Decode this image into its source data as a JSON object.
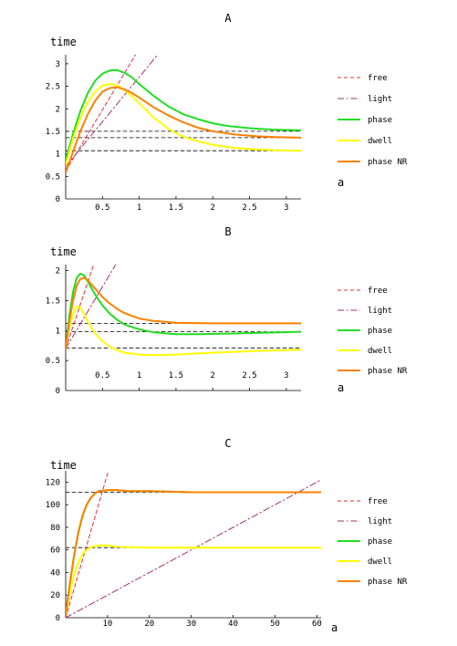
{
  "chart_data": [
    {
      "type": "line",
      "title": "A",
      "xlabel": "a",
      "ylabel": "time",
      "xlim": [
        0,
        3.2
      ],
      "ylim": [
        0,
        3.2
      ],
      "xticks": [
        0.5,
        1,
        1.5,
        2,
        2.5,
        3
      ],
      "xtick_labels": [
        "0.5",
        "1",
        "1.5",
        "2",
        "2.5",
        "3"
      ],
      "yticks": [
        0.5,
        1,
        1.5,
        2,
        2.5,
        3
      ],
      "ytick_labels": [
        "0.5",
        "1",
        "1.5",
        "2",
        "2.5",
        "3"
      ],
      "origin_label": "0",
      "legend_position": "right",
      "series": [
        {
          "name": "free",
          "style": "dashed",
          "color": "#e03030",
          "width": 1,
          "points": [
            [
              0,
              0.62
            ],
            [
              0.95,
              3.2
            ]
          ]
        },
        {
          "name": "light",
          "style": "dashdot",
          "color": "#a03070",
          "width": 1,
          "points": [
            [
              0,
              0.72
            ],
            [
              1.25,
              3.2
            ]
          ]
        },
        {
          "name": "phase",
          "style": "solid",
          "color": "#22dd22",
          "width": 2,
          "points": [
            [
              0,
              0.85
            ],
            [
              0.1,
              1.45
            ],
            [
              0.2,
              1.95
            ],
            [
              0.3,
              2.35
            ],
            [
              0.4,
              2.62
            ],
            [
              0.5,
              2.78
            ],
            [
              0.6,
              2.85
            ],
            [
              0.7,
              2.86
            ],
            [
              0.8,
              2.8
            ],
            [
              0.9,
              2.7
            ],
            [
              1.0,
              2.55
            ],
            [
              1.2,
              2.28
            ],
            [
              1.4,
              2.05
            ],
            [
              1.6,
              1.88
            ],
            [
              1.8,
              1.77
            ],
            [
              2.0,
              1.68
            ],
            [
              2.2,
              1.62
            ],
            [
              2.5,
              1.57
            ],
            [
              2.8,
              1.54
            ],
            [
              3.2,
              1.52
            ]
          ]
        },
        {
          "name": "dwell",
          "style": "solid",
          "color": "#ffff00",
          "width": 2,
          "points": [
            [
              0,
              0.75
            ],
            [
              0.1,
              1.35
            ],
            [
              0.2,
              1.8
            ],
            [
              0.3,
              2.15
            ],
            [
              0.4,
              2.38
            ],
            [
              0.5,
              2.52
            ],
            [
              0.6,
              2.55
            ],
            [
              0.7,
              2.52
            ],
            [
              0.8,
              2.42
            ],
            [
              0.9,
              2.28
            ],
            [
              1.0,
              2.12
            ],
            [
              1.2,
              1.8
            ],
            [
              1.4,
              1.55
            ],
            [
              1.6,
              1.38
            ],
            [
              1.8,
              1.28
            ],
            [
              2.0,
              1.2
            ],
            [
              2.3,
              1.13
            ],
            [
              2.6,
              1.1
            ],
            [
              2.9,
              1.08
            ],
            [
              3.2,
              1.07
            ]
          ]
        },
        {
          "name": "phase NR",
          "style": "solid",
          "color": "#ff8000",
          "width": 2,
          "points": [
            [
              0,
              0.58
            ],
            [
              0.1,
              1.05
            ],
            [
              0.2,
              1.5
            ],
            [
              0.3,
              1.88
            ],
            [
              0.4,
              2.18
            ],
            [
              0.5,
              2.38
            ],
            [
              0.6,
              2.46
            ],
            [
              0.7,
              2.48
            ],
            [
              0.8,
              2.43
            ],
            [
              0.9,
              2.35
            ],
            [
              1.0,
              2.25
            ],
            [
              1.2,
              2.03
            ],
            [
              1.4,
              1.85
            ],
            [
              1.6,
              1.7
            ],
            [
              1.8,
              1.58
            ],
            [
              2.0,
              1.5
            ],
            [
              2.3,
              1.43
            ],
            [
              2.6,
              1.39
            ],
            [
              2.9,
              1.37
            ],
            [
              3.2,
              1.36
            ]
          ]
        },
        {
          "name": "",
          "style": "dashed",
          "color": "#000000",
          "width": 0.8,
          "points": [
            [
              0,
              1.5
            ],
            [
              3.2,
              1.5
            ]
          ]
        },
        {
          "name": "",
          "style": "dashed",
          "color": "#000000",
          "width": 0.8,
          "points": [
            [
              0,
              1.36
            ],
            [
              3.2,
              1.36
            ]
          ]
        },
        {
          "name": "",
          "style": "dashed",
          "color": "#000000",
          "width": 0.8,
          "points": [
            [
              0,
              1.07
            ],
            [
              3.2,
              1.07
            ]
          ]
        }
      ]
    },
    {
      "type": "line",
      "title": "B",
      "xlabel": "a",
      "ylabel": "time",
      "xlim": [
        0,
        3.2
      ],
      "ylim": [
        0,
        2.1
      ],
      "xticks": [
        0.5,
        1,
        1.5,
        2,
        2.5,
        3
      ],
      "xtick_labels": [
        "0.5",
        "1",
        "1.5",
        "2",
        "2.5",
        "3"
      ],
      "yticks": [
        0.5,
        1,
        1.5,
        2
      ],
      "ytick_labels": [
        "0.5",
        "1",
        "1.5",
        "2"
      ],
      "origin_label": "0",
      "legend_position": "right",
      "series": [
        {
          "name": "free",
          "style": "dashed",
          "color": "#e03030",
          "width": 1,
          "points": [
            [
              0,
              0.7
            ],
            [
              0.38,
              2.1
            ]
          ]
        },
        {
          "name": "light",
          "style": "dashdot",
          "color": "#a03070",
          "width": 1,
          "points": [
            [
              0,
              0.7
            ],
            [
              0.68,
              2.1
            ]
          ]
        },
        {
          "name": "phase",
          "style": "solid",
          "color": "#22dd22",
          "width": 2,
          "points": [
            [
              0,
              0.7
            ],
            [
              0.05,
              1.25
            ],
            [
              0.1,
              1.65
            ],
            [
              0.15,
              1.88
            ],
            [
              0.2,
              1.95
            ],
            [
              0.25,
              1.92
            ],
            [
              0.3,
              1.82
            ],
            [
              0.4,
              1.6
            ],
            [
              0.5,
              1.42
            ],
            [
              0.6,
              1.28
            ],
            [
              0.7,
              1.18
            ],
            [
              0.8,
              1.1
            ],
            [
              1.0,
              1.02
            ],
            [
              1.2,
              0.97
            ],
            [
              1.5,
              0.94
            ],
            [
              1.8,
              0.94
            ],
            [
              2.2,
              0.95
            ],
            [
              2.6,
              0.96
            ],
            [
              3.2,
              0.98
            ]
          ]
        },
        {
          "name": "dwell",
          "style": "solid",
          "color": "#ffff00",
          "width": 2,
          "points": [
            [
              0,
              0.7
            ],
            [
              0.05,
              1.05
            ],
            [
              0.1,
              1.28
            ],
            [
              0.15,
              1.4
            ],
            [
              0.2,
              1.38
            ],
            [
              0.25,
              1.28
            ],
            [
              0.3,
              1.15
            ],
            [
              0.4,
              0.95
            ],
            [
              0.5,
              0.82
            ],
            [
              0.6,
              0.73
            ],
            [
              0.7,
              0.67
            ],
            [
              0.8,
              0.63
            ],
            [
              1.0,
              0.6
            ],
            [
              1.2,
              0.59
            ],
            [
              1.5,
              0.6
            ],
            [
              1.8,
              0.62
            ],
            [
              2.2,
              0.64
            ],
            [
              2.6,
              0.66
            ],
            [
              3.2,
              0.68
            ]
          ]
        },
        {
          "name": "phase NR",
          "style": "solid",
          "color": "#ff8000",
          "width": 2,
          "points": [
            [
              0,
              0.7
            ],
            [
              0.05,
              1.15
            ],
            [
              0.1,
              1.5
            ],
            [
              0.15,
              1.75
            ],
            [
              0.2,
              1.86
            ],
            [
              0.25,
              1.88
            ],
            [
              0.3,
              1.84
            ],
            [
              0.4,
              1.7
            ],
            [
              0.5,
              1.56
            ],
            [
              0.6,
              1.45
            ],
            [
              0.7,
              1.36
            ],
            [
              0.8,
              1.29
            ],
            [
              1.0,
              1.2
            ],
            [
              1.2,
              1.16
            ],
            [
              1.5,
              1.13
            ],
            [
              2.0,
              1.12
            ],
            [
              2.5,
              1.12
            ],
            [
              3.2,
              1.12
            ]
          ]
        },
        {
          "name": "",
          "style": "dashed",
          "color": "#000000",
          "width": 0.8,
          "points": [
            [
              0,
              1.12
            ],
            [
              3.2,
              1.12
            ]
          ]
        },
        {
          "name": "",
          "style": "dashed",
          "color": "#000000",
          "width": 0.8,
          "points": [
            [
              0,
              0.98
            ],
            [
              3.2,
              0.98
            ]
          ]
        },
        {
          "name": "",
          "style": "dashed",
          "color": "#000000",
          "width": 0.8,
          "points": [
            [
              0,
              0.71
            ],
            [
              3.2,
              0.71
            ]
          ]
        }
      ]
    },
    {
      "type": "line",
      "title": "C",
      "xlabel": "a",
      "ylabel": "time",
      "xlim": [
        0,
        61
      ],
      "ylim": [
        0,
        130
      ],
      "xticks": [
        10,
        20,
        30,
        40,
        50,
        60
      ],
      "xtick_labels": [
        "10",
        "20",
        "30",
        "40",
        "50",
        "60"
      ],
      "yticks": [
        20,
        40,
        60,
        80,
        100,
        120
      ],
      "ytick_labels": [
        "20",
        "40",
        "60",
        "80",
        "100",
        "120"
      ],
      "origin_label": "0",
      "legend_position": "right",
      "series": [
        {
          "name": "free",
          "style": "dashed",
          "color": "#e03030",
          "width": 1,
          "points": [
            [
              0,
              0
            ],
            [
              10.2,
              130
            ]
          ]
        },
        {
          "name": "light",
          "style": "dashdot",
          "color": "#a03070",
          "width": 1,
          "points": [
            [
              0,
              0
            ],
            [
              61,
              122
            ]
          ]
        },
        {
          "name": "phase",
          "style": "solid",
          "color": "#22dd22",
          "width": 2,
          "points": [
            [
              0,
              2
            ],
            [
              1,
              30
            ],
            [
              2,
              55
            ],
            [
              3,
              75
            ],
            [
              4,
              90
            ],
            [
              5,
              100
            ],
            [
              6,
              106
            ],
            [
              7,
              110
            ],
            [
              8,
              112
            ],
            [
              10,
              113
            ],
            [
              12,
              113
            ],
            [
              15,
              112
            ],
            [
              20,
              112
            ],
            [
              30,
              111
            ],
            [
              40,
              111
            ],
            [
              50,
              111
            ],
            [
              61,
              111
            ]
          ]
        },
        {
          "name": "dwell",
          "style": "solid",
          "color": "#ffff00",
          "width": 2,
          "points": [
            [
              0,
              2
            ],
            [
              1,
              22
            ],
            [
              2,
              38
            ],
            [
              3,
              49
            ],
            [
              4,
              56
            ],
            [
              5,
              60
            ],
            [
              6,
              62.5
            ],
            [
              8,
              64
            ],
            [
              10,
              64
            ],
            [
              12,
              63
            ],
            [
              15,
              62.5
            ],
            [
              20,
              62
            ],
            [
              30,
              62
            ],
            [
              40,
              62
            ],
            [
              50,
              62
            ],
            [
              61,
              62
            ]
          ]
        },
        {
          "name": "phase NR",
          "style": "solid",
          "color": "#ff8000",
          "width": 2,
          "points": [
            [
              0,
              2
            ],
            [
              1,
              30
            ],
            [
              2,
              55
            ],
            [
              3,
              75
            ],
            [
              4,
              90
            ],
            [
              5,
              100
            ],
            [
              6,
              106
            ],
            [
              7,
              110
            ],
            [
              8,
              112
            ],
            [
              10,
              113
            ],
            [
              12,
              113
            ],
            [
              15,
              112
            ],
            [
              20,
              112
            ],
            [
              30,
              111
            ],
            [
              40,
              111
            ],
            [
              50,
              111
            ],
            [
              61,
              111
            ]
          ]
        },
        {
          "name": "",
          "style": "dashed",
          "color": "#000000",
          "width": 0.8,
          "points": [
            [
              0,
              111
            ],
            [
              61,
              111
            ]
          ]
        },
        {
          "name": "",
          "style": "dashed",
          "color": "#000000",
          "width": 0.8,
          "points": [
            [
              0,
              62
            ],
            [
              61,
              62
            ]
          ]
        }
      ]
    }
  ]
}
